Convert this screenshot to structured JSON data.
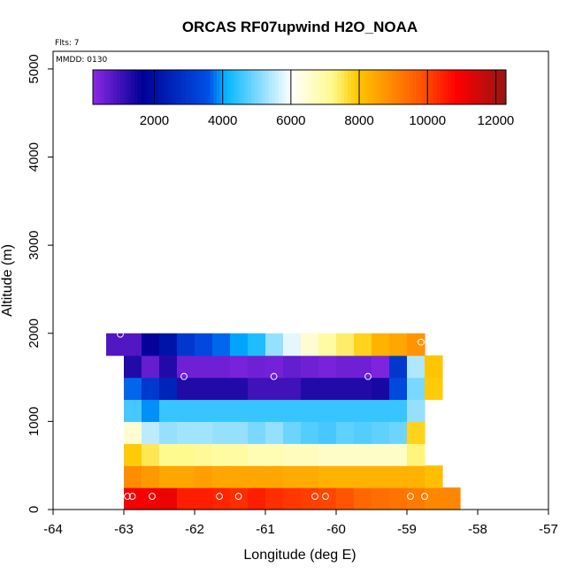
{
  "chart_data": {
    "type": "heatmap",
    "title": "ORCAS RF07upwind H2O_NOAA",
    "flights_label": "Flts: 7",
    "date_label": "MMDD: 0130",
    "xlabel": "Longitude (deg E)",
    "ylabel": "Altitude (m)",
    "xlim": [
      -64,
      -57
    ],
    "ylim": [
      0,
      5200
    ],
    "x_ticks": [
      "-64",
      "-63",
      "-62",
      "-61",
      "-60",
      "-59",
      "-58",
      "-57"
    ],
    "y_ticks": [
      "0",
      "1000",
      "2000",
      "3000",
      "4000",
      "5000"
    ],
    "colorbar": {
      "range": [
        200,
        12300
      ],
      "ticks": [
        "2000",
        "4000",
        "6000",
        "8000",
        "10000",
        "12000"
      ],
      "tick_values": [
        2000,
        4000,
        6000,
        8000,
        10000,
        12000
      ]
    },
    "cell_size": {
      "dlon": 0.25,
      "dalt": 250
    },
    "cells": [
      {
        "lon0": -63.0,
        "alt0": 0,
        "values": [
          11000,
          11000,
          11100,
          10500,
          10500,
          10400,
          10300,
          10500,
          10300,
          10200,
          10100,
          10000,
          9800,
          9500,
          9400,
          9300,
          9200,
          9000,
          9000
        ]
      },
      {
        "lon0": -63.0,
        "alt0": 250,
        "values": [
          8900,
          8700,
          8500,
          8500,
          8600,
          8500,
          8500,
          8500,
          8500,
          8400,
          8400,
          8300,
          8300,
          8300,
          8300,
          8300,
          8300,
          8100
        ]
      },
      {
        "lon0": -63.0,
        "alt0": 500,
        "values": [
          7900,
          7500,
          7200,
          7200,
          7100,
          7000,
          7000,
          6800,
          6800,
          6700,
          6700,
          6600,
          6600,
          6600,
          6600,
          6600,
          7300
        ]
      },
      {
        "lon0": -63.0,
        "alt0": 750,
        "values": [
          6500,
          5500,
          5200,
          5300,
          5300,
          5200,
          5200,
          5000,
          5200,
          4900,
          4700,
          4600,
          4800,
          4700,
          4800,
          4900,
          7800
        ]
      },
      {
        "lon0": -63.0,
        "alt0": 1000,
        "values": [
          4600,
          3900,
          4500,
          4500,
          4500,
          4500,
          4500,
          4500,
          4500,
          4500,
          4500,
          4500,
          4500,
          4500,
          4500,
          4500,
          5200
        ]
      },
      {
        "lon0": -63.0,
        "alt0": 1250,
        "values": [
          3700,
          3000,
          2500,
          1300,
          1300,
          1300,
          1300,
          1000,
          1000,
          1000,
          1300,
          1300,
          1300,
          1300,
          1400,
          3400,
          5000,
          7900
        ]
      },
      {
        "lon0": -63.0,
        "alt0": 1500,
        "values": [
          1300,
          600,
          1300,
          500,
          500,
          500,
          400,
          500,
          450,
          600,
          500,
          400,
          500,
          500,
          350,
          3000,
          5400,
          8000
        ]
      },
      {
        "lon0": -63.25,
        "alt0": 1750,
        "values": [
          800,
          800,
          1600,
          2100,
          3000,
          3400,
          3700,
          4000,
          4300,
          5200,
          5800,
          6500,
          7000,
          7400,
          7800,
          8300,
          8500,
          8800
        ]
      }
    ],
    "flight_points": [
      {
        "lon": -62.95,
        "alt": 150
      },
      {
        "lon": -62.88,
        "alt": 150
      },
      {
        "lon": -62.6,
        "alt": 150
      },
      {
        "lon": -61.65,
        "alt": 150
      },
      {
        "lon": -61.38,
        "alt": 150
      },
      {
        "lon": -60.3,
        "alt": 150
      },
      {
        "lon": -60.15,
        "alt": 150
      },
      {
        "lon": -58.95,
        "alt": 150
      },
      {
        "lon": -58.75,
        "alt": 150
      },
      {
        "lon": -62.15,
        "alt": 1510
      },
      {
        "lon": -60.88,
        "alt": 1510
      },
      {
        "lon": -59.55,
        "alt": 1510
      },
      {
        "lon": -63.05,
        "alt": 1990
      },
      {
        "lon": -58.8,
        "alt": 1900
      }
    ]
  }
}
